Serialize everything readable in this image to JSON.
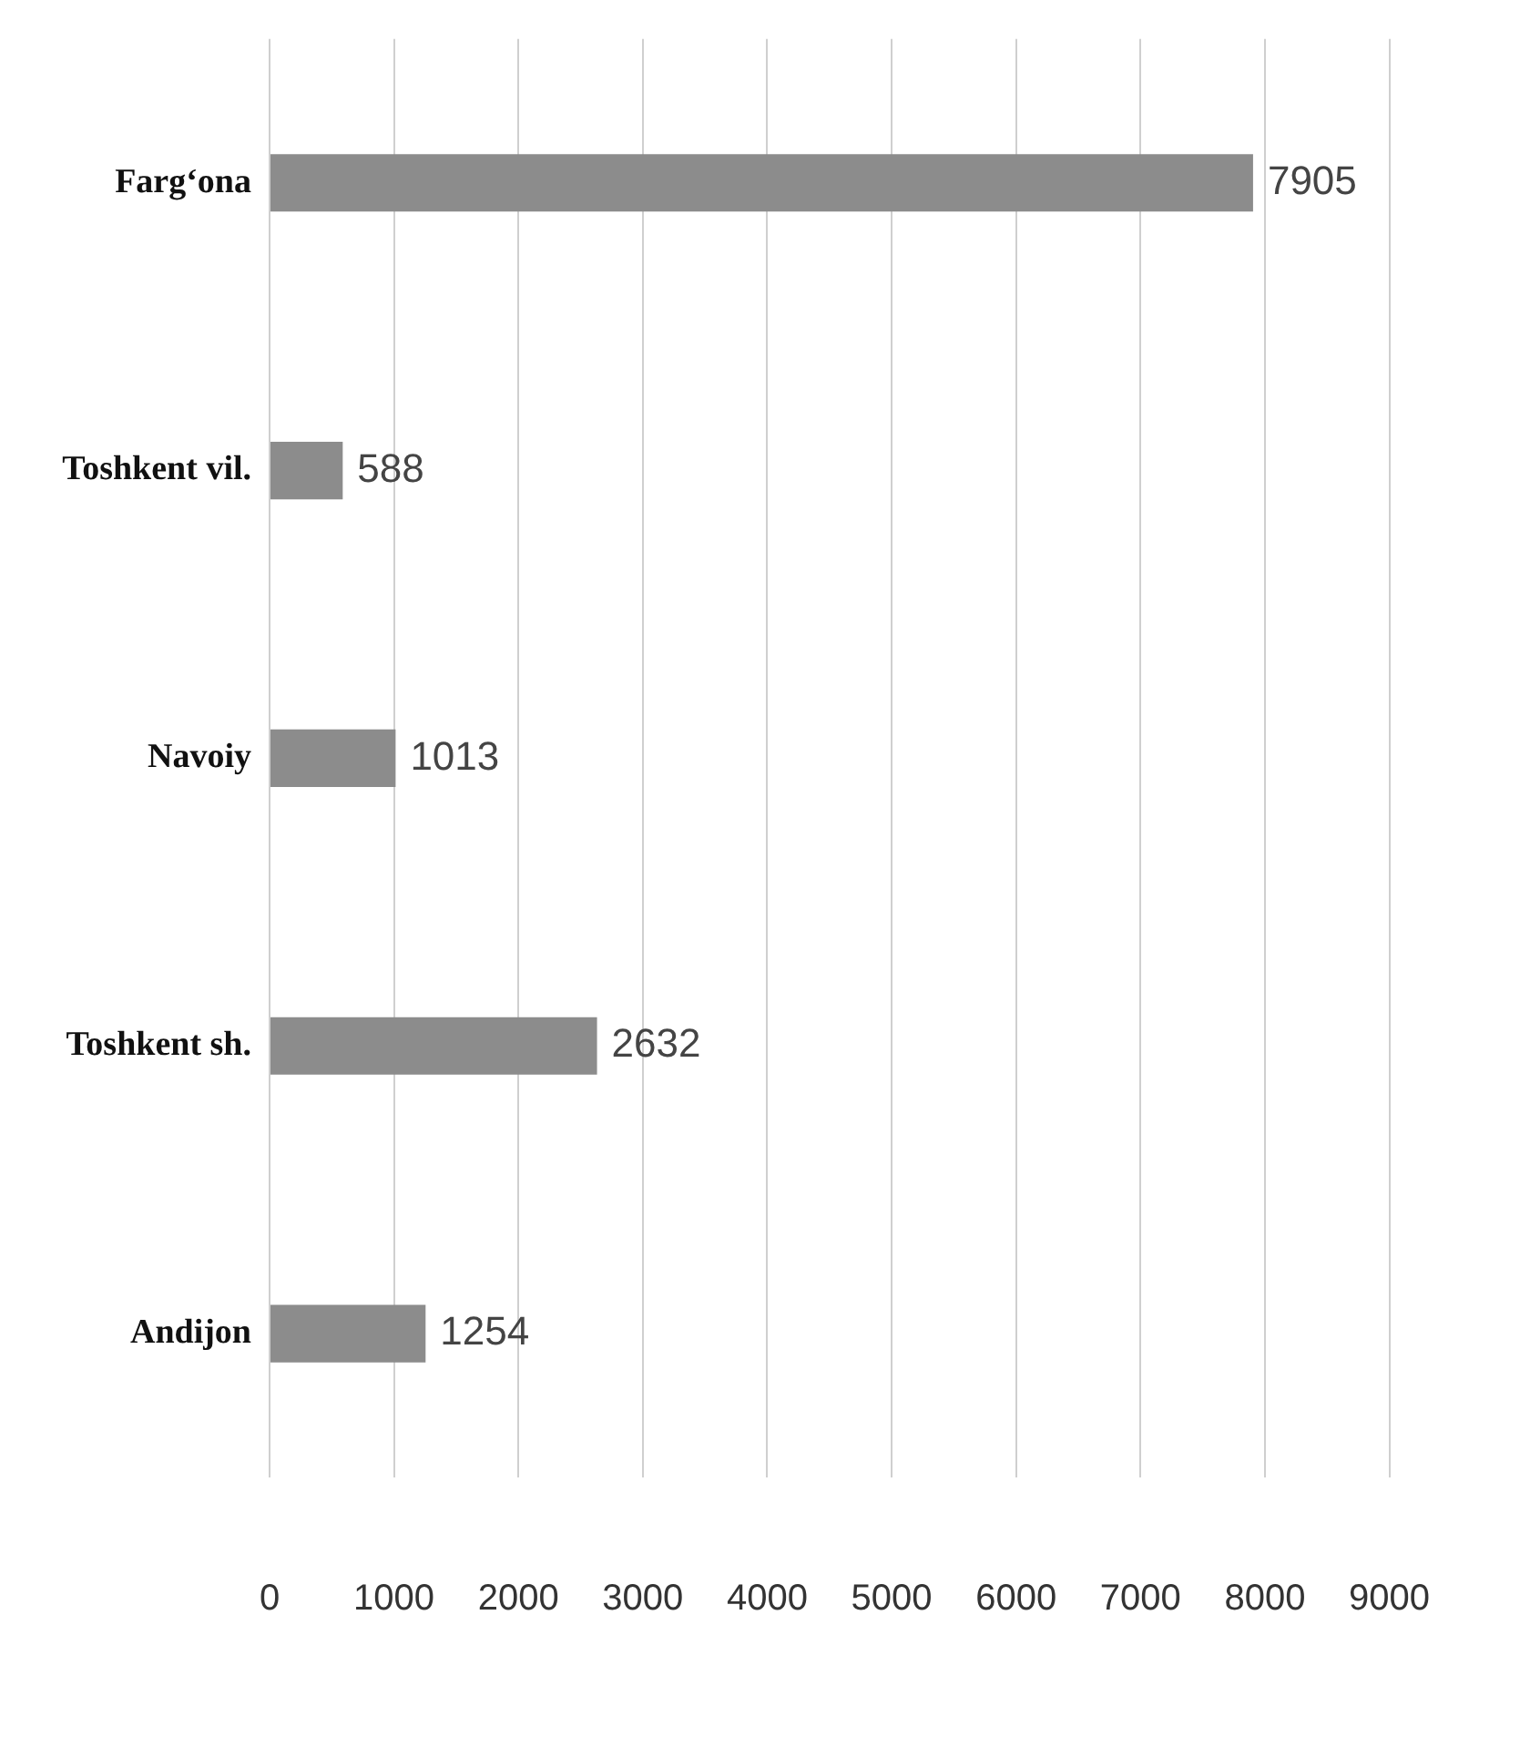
{
  "chart_data": {
    "type": "bar",
    "orientation": "horizontal",
    "categories": [
      "Fargʻona",
      "Toshkent vil.",
      "Navoiy",
      "Toshkent sh.",
      "Andijon"
    ],
    "values": [
      7905,
      588,
      1013,
      2632,
      1254
    ],
    "color": "#8c8c8c",
    "xlim": [
      0,
      9000
    ],
    "xticks": [
      0,
      1000,
      2000,
      3000,
      4000,
      5000,
      6000,
      7000,
      8000,
      9000
    ],
    "grid": "x",
    "data_labels": true,
    "legend": false
  }
}
